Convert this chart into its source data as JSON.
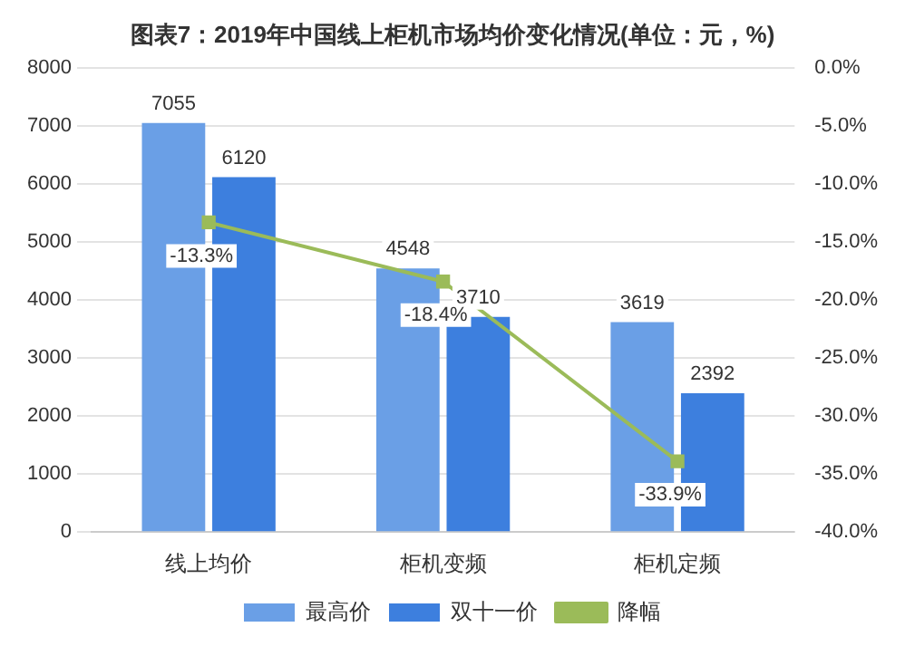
{
  "chart_data": {
    "type": "bar",
    "title": "图表7：2019年中国线上柜机市场均价变化情况(单位：元，%)",
    "categories": [
      "线上均价",
      "柜机变频",
      "柜机定频"
    ],
    "series": [
      {
        "name": "最高价",
        "color": "#6a9fe6",
        "values": [
          7055,
          4548,
          3619
        ],
        "value_labels": [
          "7055",
          "4548",
          "3619"
        ]
      },
      {
        "name": "双十一价",
        "color": "#3d7fde",
        "values": [
          6120,
          3710,
          2392
        ],
        "value_labels": [
          "6120",
          "3710",
          "2392"
        ]
      },
      {
        "name": "降幅",
        "type": "line",
        "axis": "y2",
        "color": "#9bbb59",
        "marker": "square",
        "values": [
          -13.3,
          -18.4,
          -33.9
        ],
        "value_labels": [
          "-13.3%",
          "-18.4%",
          "-33.9%"
        ]
      }
    ],
    "ylim": [
      0,
      8000
    ],
    "yticks": [
      0,
      1000,
      2000,
      3000,
      4000,
      5000,
      6000,
      7000,
      8000
    ],
    "y2lim": [
      -40,
      0
    ],
    "y2ticks": [
      {
        "value": -40,
        "label": "-40.0%"
      },
      {
        "value": -35,
        "label": "-35.0%"
      },
      {
        "value": -30,
        "label": "-30.0%"
      },
      {
        "value": -25,
        "label": "-25.0%"
      },
      {
        "value": -20,
        "label": "-20.0%"
      },
      {
        "value": -15,
        "label": "-15.0%"
      },
      {
        "value": -10,
        "label": "-10.0%"
      },
      {
        "value": -5,
        "label": "-5.0%"
      },
      {
        "value": 0,
        "label": "0.0%"
      }
    ],
    "grid": "y",
    "legend": "bottom"
  }
}
